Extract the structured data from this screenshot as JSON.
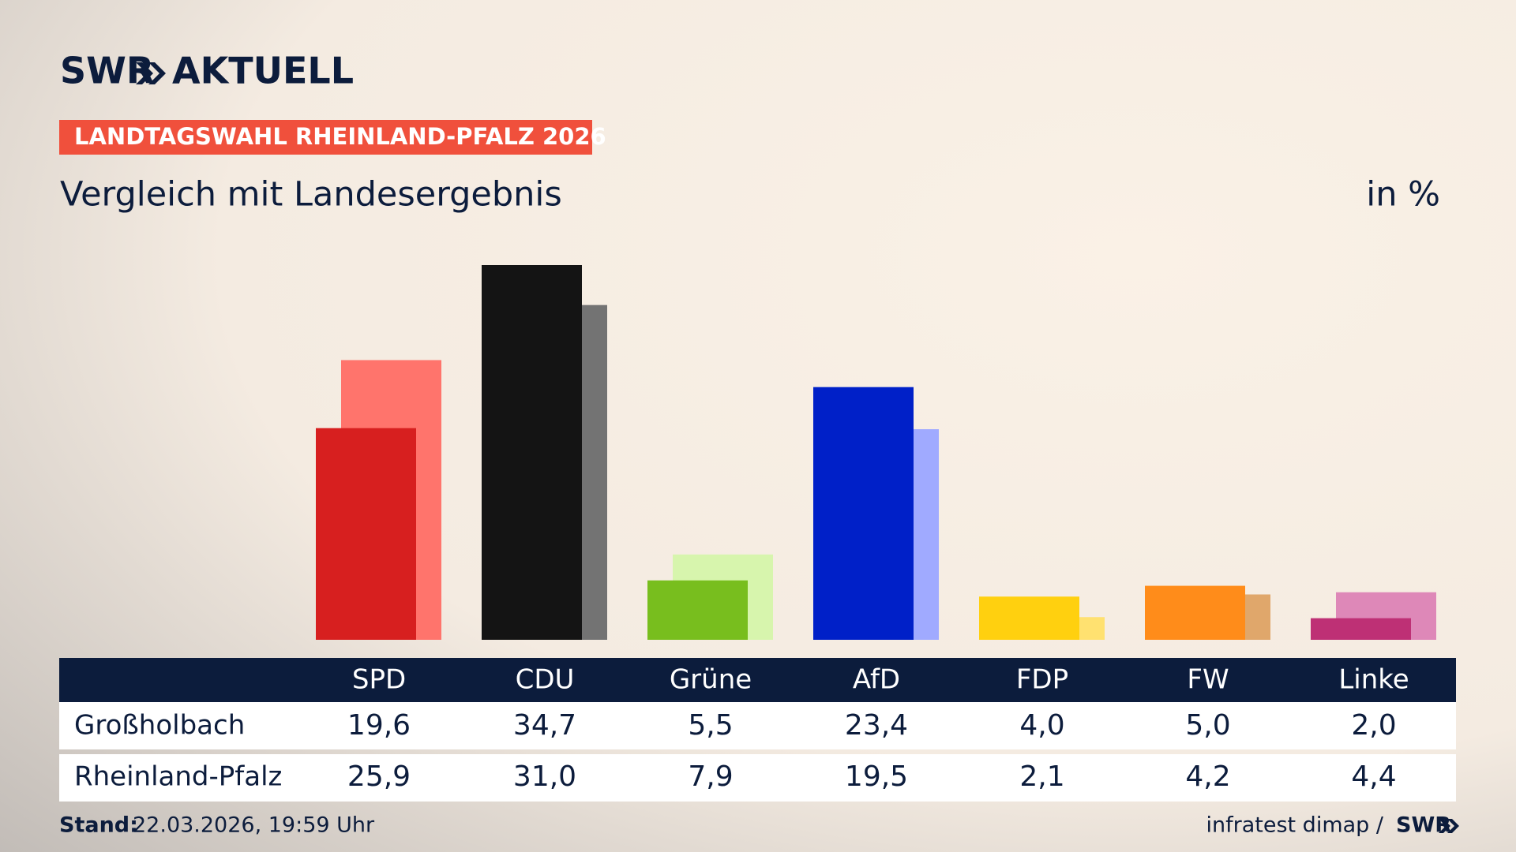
{
  "chart_data": {
    "type": "bar",
    "brand": "SWR",
    "brand_suffix": "AKTUELL",
    "kicker": "LANDTAGSWAHL RHEINLAND-PFALZ 2026",
    "title": "Vergleich mit Landesergebnis",
    "unit": "in %",
    "categories": [
      "SPD",
      "CDU",
      "Grüne",
      "AfD",
      "FDP",
      "FW",
      "Linke"
    ],
    "series": [
      {
        "name": "Großholbach",
        "colors": [
          "#d71f1f",
          "#141414",
          "#78be1e",
          "#0020c8",
          "#ffd00f",
          "#ff8c1a",
          "#be3075"
        ],
        "values": [
          19.6,
          34.7,
          5.5,
          23.4,
          4.0,
          5.0,
          2.0
        ],
        "value_labels": [
          "19,6",
          "34,7",
          "5,5",
          "23,4",
          "4,0",
          "5,0",
          "2,0"
        ]
      },
      {
        "name": "Rheinland-Pfalz",
        "colors": [
          "#ff746c",
          "#737373",
          "#d7f5ad",
          "#a0aaff",
          "#ffe170",
          "#e0a76b",
          "#de88b8"
        ],
        "values": [
          25.9,
          31.0,
          7.9,
          19.5,
          2.1,
          4.2,
          4.4
        ],
        "value_labels": [
          "25,9",
          "31,0",
          "7,9",
          "19,5",
          "2,1",
          "4,2",
          "4,4"
        ]
      }
    ],
    "footer": {
      "stand_label": "Stand:",
      "stand": "22.03.2026, 19:59 Uhr",
      "source": "infratest dimap /",
      "source_brand": "SWR"
    }
  }
}
